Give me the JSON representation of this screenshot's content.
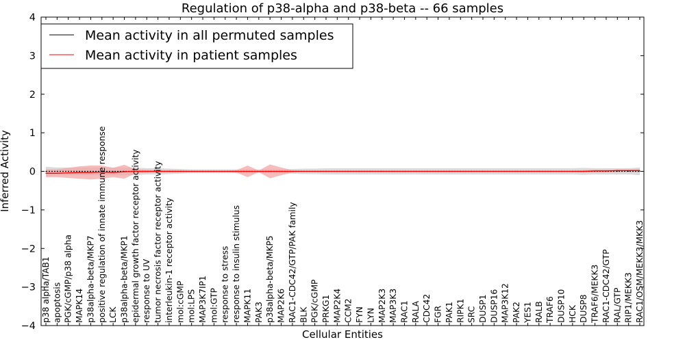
{
  "chart_data": {
    "type": "line",
    "title": "Regulation of p38-alpha and p38-beta -- 66 samples",
    "xlabel": "Cellular Entities",
    "ylabel": "Inferred Activity",
    "ylim": [
      -4,
      4
    ],
    "yticks": [
      -4,
      -3,
      -2,
      -1,
      0,
      1,
      2,
      3,
      4
    ],
    "ytick_labels": [
      "−4",
      "−3",
      "−2",
      "−1",
      "0",
      "1",
      "2",
      "3",
      "4"
    ],
    "grid": false,
    "legend_position": "top-left",
    "categories": [
      "p38 alpha/TAB1",
      "apoptosis",
      "PGK/cGMP/p38 alpha",
      "MAPK14",
      "p38alpha-beta/MKP7",
      "positive regulation of innate immune response",
      "LCK",
      "p38alpha-beta/MKP1",
      "epidermal growth factor receptor activity",
      "response to UV",
      "tumor necrosis factor receptor activity",
      "interleukin-1 receptor activity",
      "mol:cGMP",
      "mol:LPS",
      "MAP3K7IP1",
      "mol:GTP",
      "response to stress",
      "response to insulin stimulus",
      "MAPK11",
      "PAK3",
      "p38alpha-beta/MKP5",
      "MAP2K6",
      "RAC1-CDC42/GTP/PAK family",
      "BLK",
      "PGK/cGMP",
      "PRKG1",
      "MAP2K4",
      "CCM2",
      "FYN",
      "LYN",
      "MAP2K3",
      "MAP3K3",
      "RAC1",
      "RALA",
      "CDC42",
      "FGR",
      "PAK1",
      "RIPK1",
      "SRC",
      "DUSP1",
      "DUSP16",
      "MAP3K12",
      "PAK2",
      "YES1",
      "RALB",
      "TRAF6",
      "DUSP10",
      "HCK",
      "DUSP8",
      "TRAF6/MEKK3",
      "RAC1-CDC42/GTP",
      "RAL/GTP",
      "RIP1/MEKK3",
      "RAC1/OSM/MEKK3/MKK3"
    ],
    "series": [
      {
        "name": "Mean activity in all permuted samples",
        "color": "#000000",
        "band_color": "#bdbdbd",
        "values": [
          0.0,
          0.0,
          0.0,
          0.0,
          0.0,
          0.0,
          0.0,
          0.0,
          0.0,
          0.0,
          0.0,
          0.0,
          0.0,
          0.0,
          0.0,
          0.0,
          0.0,
          0.0,
          0.0,
          0.0,
          0.0,
          0.0,
          0.0,
          0.0,
          0.0,
          0.0,
          0.0,
          0.0,
          0.0,
          0.0,
          0.0,
          0.0,
          0.0,
          0.0,
          0.0,
          0.0,
          0.0,
          0.0,
          0.0,
          0.0,
          0.0,
          0.0,
          0.0,
          0.0,
          0.0,
          0.0,
          0.0,
          0.0,
          0.0,
          0.0,
          0.0,
          0.0,
          0.0,
          0.0
        ],
        "band_halfwidth": [
          0.12,
          0.1,
          0.1,
          0.1,
          0.1,
          0.1,
          0.1,
          0.1,
          0.1,
          0.08,
          0.08,
          0.07,
          0.06,
          0.05,
          0.05,
          0.05,
          0.05,
          0.05,
          0.05,
          0.05,
          0.05,
          0.05,
          0.06,
          0.07,
          0.07,
          0.08,
          0.08,
          0.08,
          0.08,
          0.08,
          0.08,
          0.08,
          0.08,
          0.08,
          0.08,
          0.08,
          0.08,
          0.08,
          0.08,
          0.08,
          0.08,
          0.08,
          0.08,
          0.08,
          0.08,
          0.08,
          0.08,
          0.08,
          0.09,
          0.08,
          0.08,
          0.08,
          0.08,
          0.1
        ]
      },
      {
        "name": "Mean activity in patient samples",
        "color": "#ff0000",
        "band_color": "#f4a5a5",
        "values": [
          -0.05,
          -0.05,
          -0.04,
          -0.03,
          -0.03,
          -0.02,
          -0.03,
          -0.01,
          0.0,
          0.0,
          0.0,
          0.0,
          0.0,
          0.0,
          0.0,
          0.0,
          0.0,
          0.0,
          0.0,
          0.0,
          0.0,
          0.0,
          0.0,
          0.0,
          0.0,
          0.0,
          0.0,
          0.0,
          0.0,
          0.0,
          0.0,
          0.0,
          0.0,
          0.0,
          0.0,
          0.0,
          0.0,
          0.0,
          0.0,
          0.0,
          0.0,
          0.0,
          0.0,
          0.0,
          0.0,
          0.0,
          0.0,
          0.0,
          0.0,
          0.01,
          0.01,
          0.02,
          0.02,
          0.02
        ],
        "band_halfwidth": [
          0.1,
          0.1,
          0.13,
          0.16,
          0.18,
          0.17,
          0.12,
          0.18,
          0.05,
          0.04,
          0.03,
          0.03,
          0.03,
          0.02,
          0.02,
          0.02,
          0.02,
          0.03,
          0.15,
          0.02,
          0.18,
          0.1,
          0.03,
          0.02,
          0.02,
          0.02,
          0.02,
          0.02,
          0.02,
          0.02,
          0.02,
          0.02,
          0.02,
          0.02,
          0.02,
          0.02,
          0.02,
          0.02,
          0.02,
          0.02,
          0.02,
          0.02,
          0.02,
          0.02,
          0.02,
          0.02,
          0.02,
          0.02,
          0.03,
          0.03,
          0.03,
          0.03,
          0.03,
          0.04
        ]
      }
    ]
  }
}
